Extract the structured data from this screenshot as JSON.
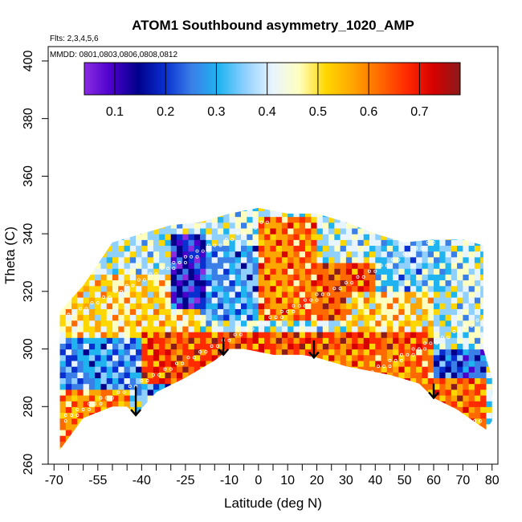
{
  "title": "ATOM1 Southbound asymmetry_1020_AMP",
  "flights_note": "Flts: 2,3,4,5,6",
  "dates_note": "MMDD: 0801,0803,0806,0808,0812",
  "chart_data": {
    "type": "heatmap",
    "title": "ATOM1 Southbound asymmetry_1020_AMP",
    "xlabel": "Latitude (deg N)",
    "ylabel": "Theta (C)",
    "xlim": [
      -72,
      82
    ],
    "ylim": [
      260,
      405
    ],
    "x_ticks": [
      -70,
      -55,
      -40,
      -25,
      -10,
      0,
      10,
      20,
      30,
      40,
      50,
      60,
      70,
      80
    ],
    "x_minor_ticks": [
      -65,
      -60,
      -50,
      -45,
      -35,
      -30,
      -20,
      -15,
      -5,
      5,
      15,
      25,
      35,
      45,
      55,
      65,
      75
    ],
    "y_ticks": [
      260,
      280,
      300,
      320,
      340,
      360,
      380,
      400
    ],
    "colorbar": {
      "min": 0.04,
      "max": 0.78,
      "ticks": [
        0.1,
        0.2,
        0.3,
        0.4,
        0.5,
        0.6,
        0.7
      ],
      "colors": [
        "#8a2be2",
        "#4b00cc",
        "#00008b",
        "#0a2fd0",
        "#3a7fe8",
        "#1fb4f0",
        "#8fd0ff",
        "#e8f4ff",
        "#ffffc0",
        "#ffd700",
        "#ffa500",
        "#ff6a00",
        "#ff2a00",
        "#d60000",
        "#8b1a1a"
      ]
    },
    "arrows": [
      {
        "lat": -42,
        "theta_top": 287,
        "theta_tip": 277
      },
      {
        "lat": -12,
        "theta_top": 304,
        "theta_tip": 298
      },
      {
        "lat": 19,
        "theta_top": 303,
        "theta_tip": 297
      },
      {
        "lat": 60,
        "theta_top": 288,
        "theta_tip": 283
      }
    ],
    "lower_boundary": [
      [
        -68,
        265
      ],
      [
        -60,
        276
      ],
      [
        -50,
        280
      ],
      [
        -45,
        280
      ],
      [
        -42,
        277
      ],
      [
        -35,
        285
      ],
      [
        -25,
        290
      ],
      [
        -15,
        296
      ],
      [
        -10,
        300
      ],
      [
        -5,
        300
      ],
      [
        5,
        298
      ],
      [
        15,
        298
      ],
      [
        20,
        297
      ],
      [
        30,
        294
      ],
      [
        45,
        291
      ],
      [
        55,
        288
      ],
      [
        60,
        283
      ],
      [
        68,
        279
      ],
      [
        75,
        274
      ],
      [
        78,
        272
      ]
    ],
    "upper_boundary": [
      [
        -68,
        304
      ],
      [
        -68,
        313
      ],
      [
        -60,
        322
      ],
      [
        -50,
        337
      ],
      [
        -40,
        340
      ],
      [
        -30,
        343
      ],
      [
        -20,
        344
      ],
      [
        -10,
        347
      ],
      [
        0,
        349
      ],
      [
        10,
        347
      ],
      [
        20,
        347
      ],
      [
        30,
        344
      ],
      [
        40,
        340
      ],
      [
        50,
        337
      ],
      [
        60,
        338
      ],
      [
        70,
        338
      ],
      [
        77,
        336
      ],
      [
        77,
        300
      ],
      [
        80,
        290
      ],
      [
        80,
        275
      ]
    ],
    "regions": [
      {
        "lat": [
          -68,
          -30
        ],
        "theta": [
          285,
          315
        ],
        "value": 0.28
      },
      {
        "lat": [
          -68,
          -20
        ],
        "theta": [
          305,
          325
        ],
        "value": 0.5
      },
      {
        "lat": [
          -30,
          -18
        ],
        "theta": [
          315,
          340
        ],
        "value": 0.15
      },
      {
        "lat": [
          -18,
          0
        ],
        "theta": [
          310,
          335
        ],
        "value": 0.3
      },
      {
        "lat": [
          0,
          20
        ],
        "theta": [
          310,
          345
        ],
        "value": 0.6
      },
      {
        "lat": [
          20,
          40
        ],
        "theta": [
          310,
          330
        ],
        "value": 0.65
      },
      {
        "lat": [
          30,
          60
        ],
        "theta": [
          300,
          320
        ],
        "value": 0.5
      },
      {
        "lat": [
          40,
          65
        ],
        "theta": [
          320,
          338
        ],
        "value": 0.35
      },
      {
        "lat": [
          55,
          78
        ],
        "theta": [
          290,
          300
        ],
        "value": 0.22
      },
      {
        "lat": [
          -40,
          60
        ],
        "theta": [
          288,
          305
        ],
        "value": 0.65
      },
      {
        "lat": [
          20,
          60
        ],
        "theta": [
          285,
          300
        ],
        "value": 0.6
      },
      {
        "lat": [
          60,
          78
        ],
        "theta": [
          272,
          290
        ],
        "value": 0.62
      },
      {
        "lat": [
          -68,
          -45
        ],
        "theta": [
          265,
          285
        ],
        "value": 0.58
      }
    ]
  }
}
